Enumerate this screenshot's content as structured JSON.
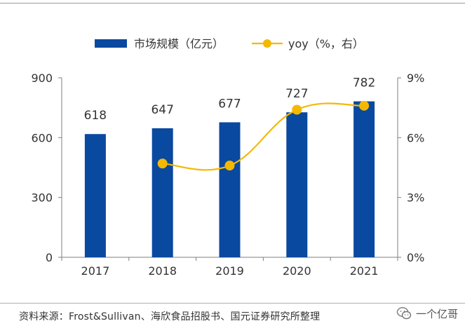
{
  "chart_data": {
    "type": "bar",
    "categories": [
      "2017",
      "2018",
      "2019",
      "2020",
      "2021"
    ],
    "series": [
      {
        "name": "市场规模（亿元）",
        "kind": "bar",
        "axis": "left",
        "values": [
          618,
          647,
          677,
          727,
          782
        ]
      },
      {
        "name": "yoy（%，右）",
        "kind": "line",
        "axis": "right",
        "values": [
          null,
          4.7,
          4.6,
          7.4,
          7.6
        ]
      }
    ],
    "data_labels": [
      "618",
      "647",
      "677",
      "727",
      "782"
    ],
    "y_left": {
      "min": 0,
      "max": 900,
      "ticks": [
        0,
        300,
        600,
        900
      ],
      "tick_labels": [
        "0",
        "300",
        "600",
        "900"
      ]
    },
    "y_right": {
      "min": 0,
      "max": 9,
      "ticks": [
        0,
        3,
        6,
        9
      ],
      "tick_labels": [
        "0%",
        "3%",
        "6%",
        "9%"
      ]
    },
    "legend_position": "top",
    "grid": false,
    "colors": {
      "bar": "#0a49a0",
      "line": "#f5b800",
      "axis": "#7f7f7f"
    }
  },
  "footer": {
    "source": "资料来源：Frost&Sullivan、海欣食品招股书、国元证券研究所整理",
    "watermark": "一个亿哥"
  }
}
